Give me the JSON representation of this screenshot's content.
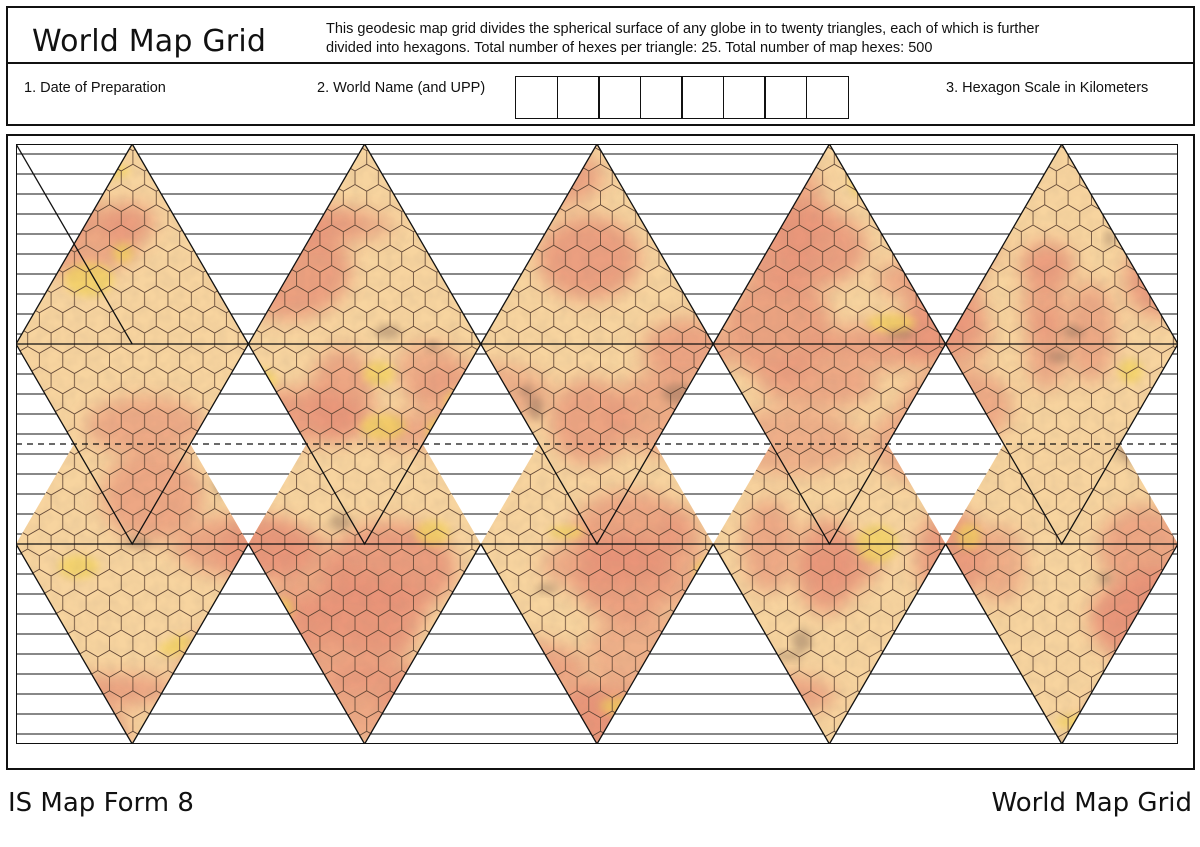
{
  "header": {
    "title": "World Map Grid",
    "description_line1": "This geodesic map grid divides the spherical surface of any globe in to twenty triangles, each of which is further",
    "description_line2": "divided into hexagons. Total number of hexes per triangle: 25. Total number of map hexes: 500"
  },
  "fields": {
    "date_label": "1. Date of Preparation",
    "world_label": "2. World Name (and UPP)",
    "upp_boxes": [
      "",
      "",
      "",
      "",
      "",
      "",
      "",
      ""
    ],
    "scale_label": "3. Hexagon Scale in Kilometers"
  },
  "map": {
    "projection": "icosahedral",
    "triangles": 20,
    "hexes_per_triangle": 25,
    "total_hexes": 500,
    "colors": {
      "terrain_base": "#f7d49f",
      "terrain_pink": "#e89378",
      "terrain_yellow": "#f2d35a",
      "terrain_dark": "#8c6e5a",
      "hex_line": "#5a4030",
      "grid_line": "#111111"
    }
  },
  "footer": {
    "left": "IS Map Form 8",
    "right": "World Map Grid"
  }
}
